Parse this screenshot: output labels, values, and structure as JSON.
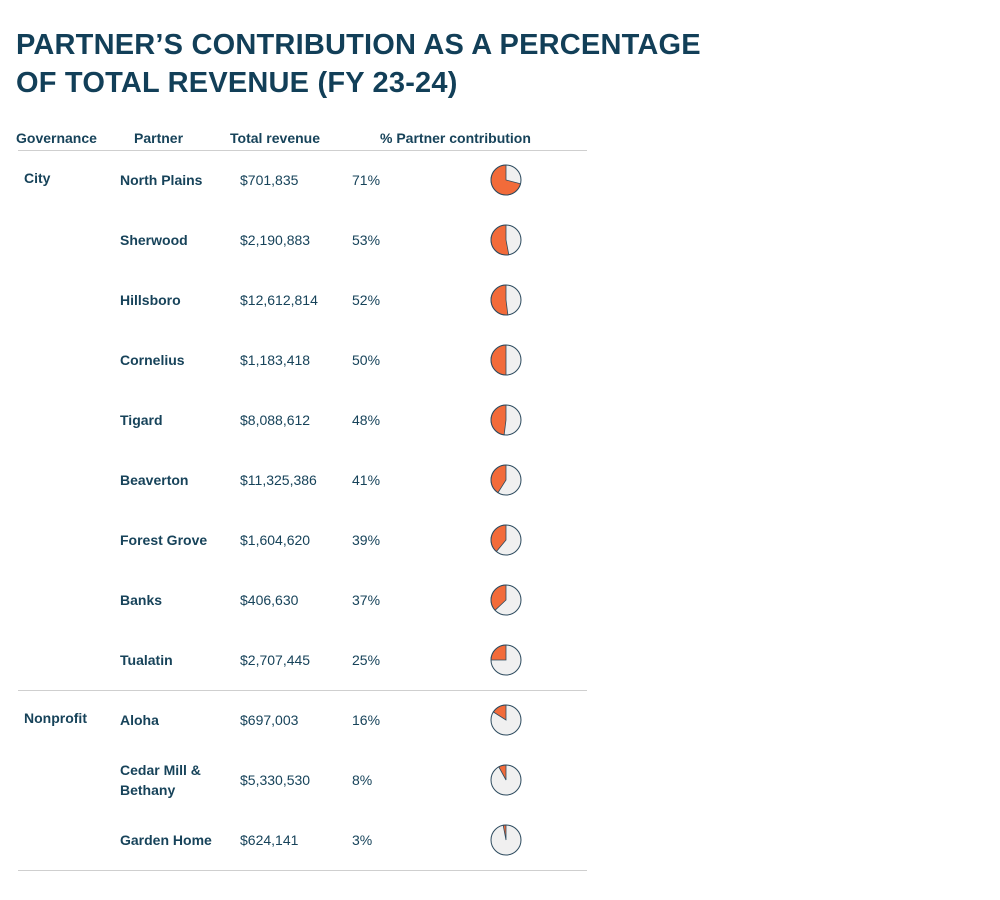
{
  "title": "PARTNER’S CONTRIBUTION AS A PERCENTAGE OF TOTAL REVENUE (FY 23-24)",
  "title_lines": [
    "PARTNER’S CONTRIBUTION AS A PERCENTAGE",
    "OF TOTAL REVENUE (FY 23-24)"
  ],
  "headers": {
    "governance": "Governance",
    "partner": "Partner",
    "revenue": "Total revenue",
    "pct": "% Partner contribution"
  },
  "colors": {
    "title": "#123f58",
    "slice": "#f26b3a",
    "remainder": "#f0f0f0",
    "outline": "#2c4a5e"
  },
  "chart_data": {
    "type": "table",
    "title": "PARTNER’S CONTRIBUTION AS A PERCENTAGE OF TOTAL REVENUE (FY 23-24)",
    "columns": [
      "Governance",
      "Partner",
      "Total revenue",
      "% Partner contribution"
    ],
    "groups": [
      {
        "governance": "City",
        "rows": [
          {
            "partner": "North Plains",
            "revenue": "$701,835",
            "pct_label": "71%",
            "pct": 71
          },
          {
            "partner": "Sherwood",
            "revenue": "$2,190,883",
            "pct_label": "53%",
            "pct": 53
          },
          {
            "partner": "Hillsboro",
            "revenue": "$12,612,814",
            "pct_label": "52%",
            "pct": 52
          },
          {
            "partner": "Cornelius",
            "revenue": "$1,183,418",
            "pct_label": "50%",
            "pct": 50
          },
          {
            "partner": "Tigard",
            "revenue": "$8,088,612",
            "pct_label": "48%",
            "pct": 48
          },
          {
            "partner": "Beaverton",
            "revenue": "$11,325,386",
            "pct_label": "41%",
            "pct": 41
          },
          {
            "partner": "Forest Grove",
            "revenue": "$1,604,620",
            "pct_label": "39%",
            "pct": 39
          },
          {
            "partner": "Banks",
            "revenue": "$406,630",
            "pct_label": "37%",
            "pct": 37
          },
          {
            "partner": "Tualatin",
            "revenue": "$2,707,445",
            "pct_label": "25%",
            "pct": 25
          }
        ]
      },
      {
        "governance": "Nonprofit",
        "rows": [
          {
            "partner": "Aloha",
            "revenue": "$697,003",
            "pct_label": "16%",
            "pct": 16
          },
          {
            "partner": "Cedar Mill & Bethany",
            "revenue": "$5,330,530",
            "pct_label": "8%",
            "pct": 8
          },
          {
            "partner": "Garden Home",
            "revenue": "$624,141",
            "pct_label": "3%",
            "pct": 3
          }
        ]
      }
    ]
  }
}
